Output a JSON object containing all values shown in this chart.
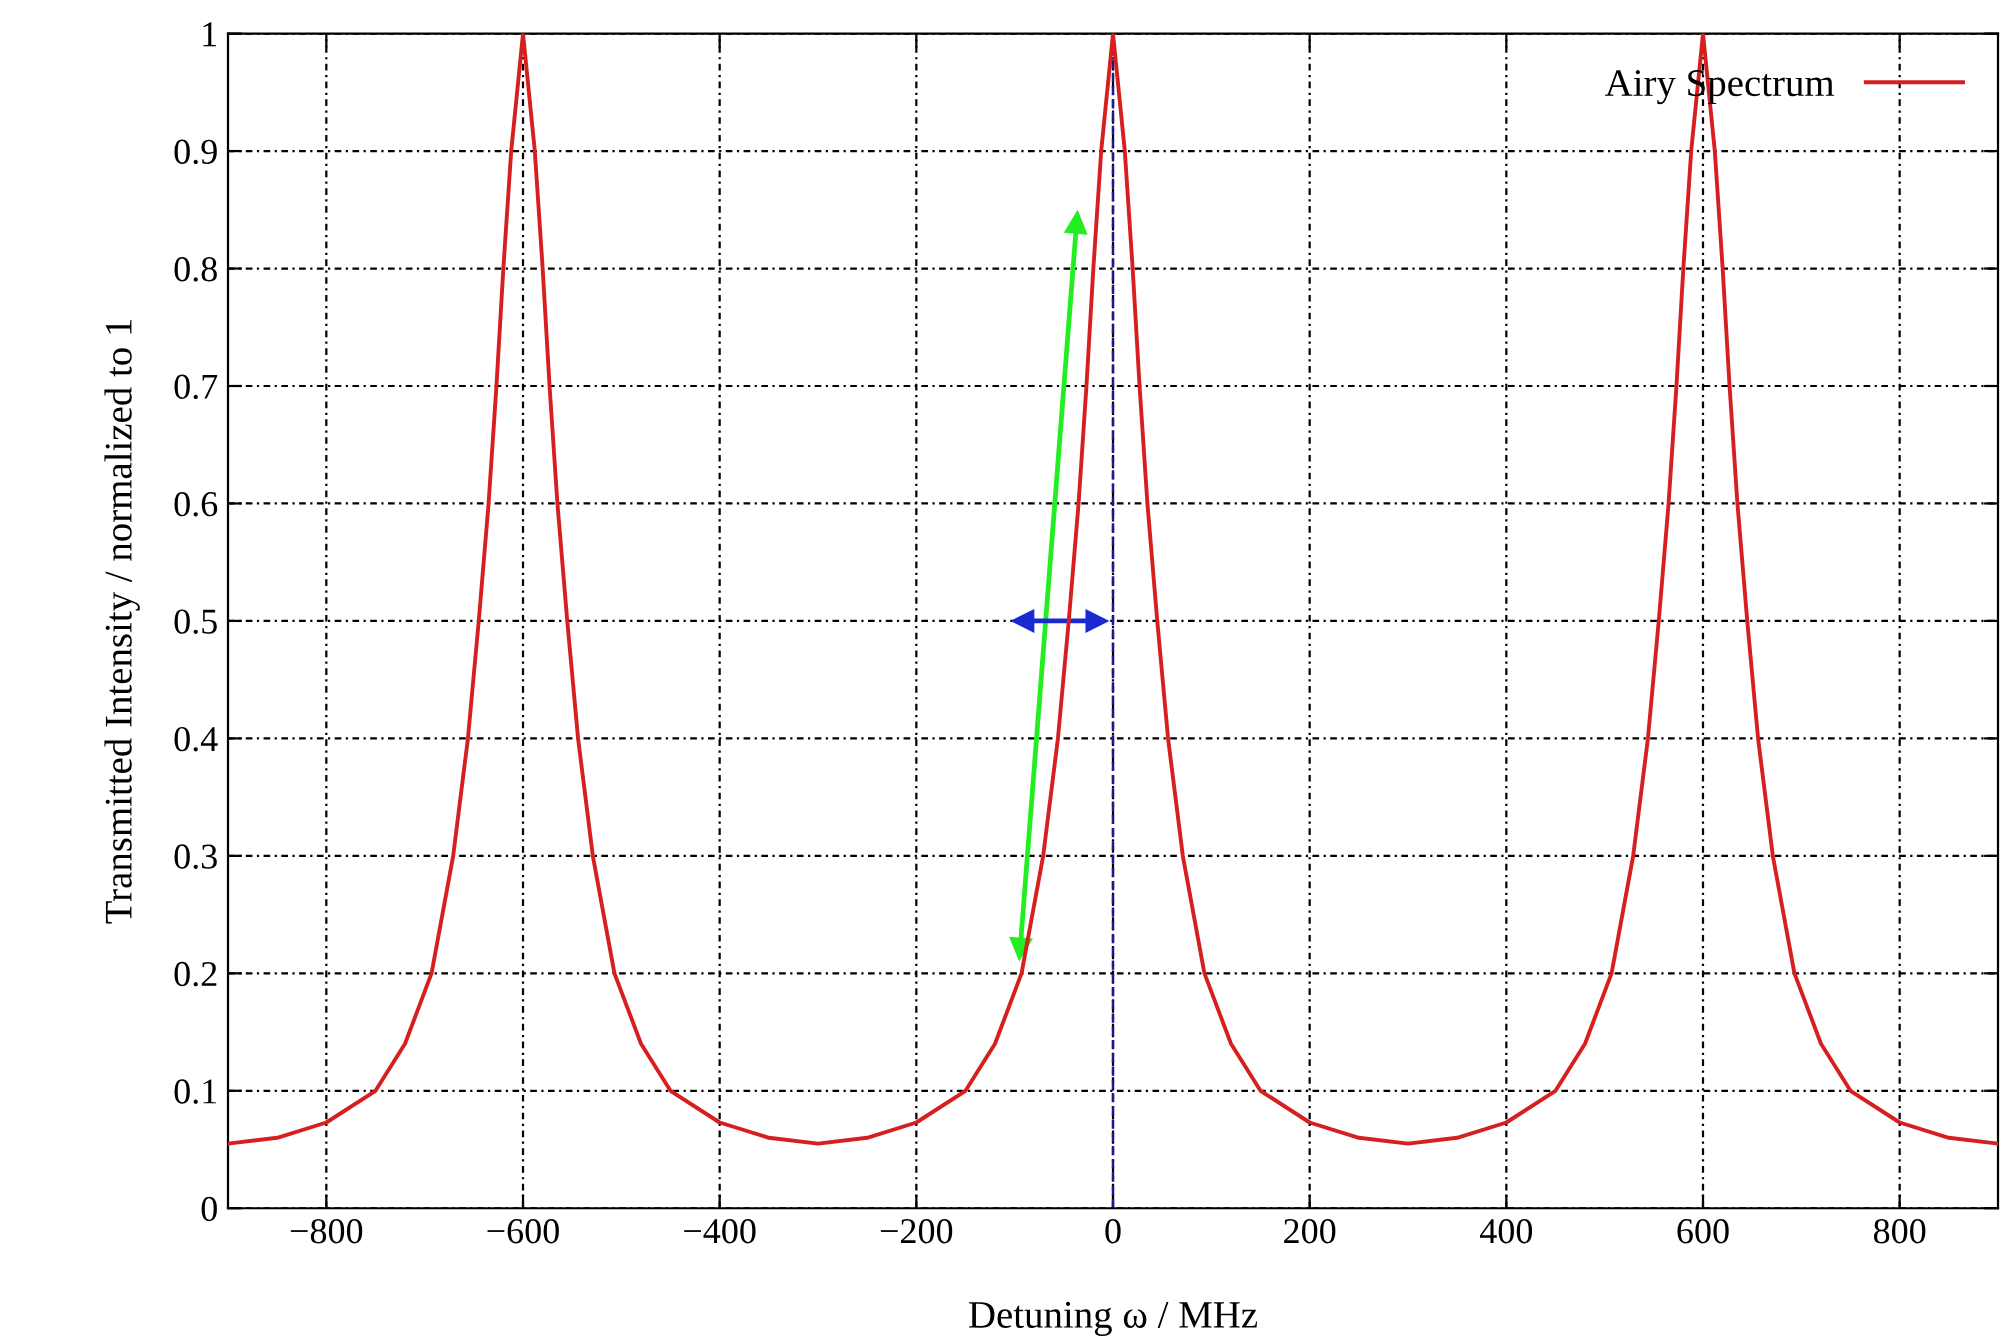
{
  "chart_data": {
    "type": "line",
    "xlabel": "Detuning ω / MHz",
    "ylabel": "Transmitted Intensity / normalized to 1",
    "xlim": [
      -900,
      900
    ],
    "ylim": [
      0,
      1
    ],
    "xticks": [
      {
        "value": -800,
        "label": "−800"
      },
      {
        "value": -600,
        "label": "−600"
      },
      {
        "value": -400,
        "label": "−400"
      },
      {
        "value": -200,
        "label": "−200"
      },
      0,
      200,
      400,
      600,
      800
    ],
    "yticks": [
      0,
      0.1,
      0.2,
      0.3,
      0.4,
      0.5,
      0.6,
      0.7,
      0.8,
      0.9,
      1
    ],
    "grid": true,
    "legend": "top right",
    "marker": "none",
    "line_style": "solid",
    "ref_lines": [
      {
        "axis": "x",
        "value": 0,
        "color": "#1a1a8c",
        "line_style": "dashed"
      }
    ],
    "series": [
      {
        "name": "Airy Spectrum",
        "color": "#d62020",
        "x": [
          -900,
          -850,
          -800,
          -750,
          -720,
          -693,
          -671,
          -656,
          -645,
          -635,
          -627,
          -620,
          -612,
          -600,
          -588,
          -580,
          -573,
          -565,
          -555,
          -544,
          -529,
          -507,
          -480,
          -450,
          -400,
          -350,
          -300,
          -250,
          -200,
          -150,
          -120,
          -93,
          -71,
          -56,
          -45,
          -35,
          -27,
          -20,
          -12,
          0,
          12,
          20,
          27,
          35,
          45,
          56,
          71,
          93,
          120,
          150,
          200,
          250,
          300,
          350,
          400,
          450,
          480,
          507,
          529,
          544,
          555,
          565,
          573,
          580,
          588,
          600,
          612,
          620,
          627,
          635,
          645,
          656,
          671,
          693,
          720,
          750,
          800,
          850,
          900
        ],
        "values": [
          0.055,
          0.06,
          0.073,
          0.1,
          0.14,
          0.2,
          0.3,
          0.4,
          0.5,
          0.6,
          0.7,
          0.8,
          0.9,
          1,
          0.9,
          0.8,
          0.7,
          0.6,
          0.5,
          0.4,
          0.3,
          0.2,
          0.14,
          0.1,
          0.073,
          0.06,
          0.055,
          0.06,
          0.073,
          0.1,
          0.14,
          0.2,
          0.3,
          0.4,
          0.5,
          0.6,
          0.7,
          0.8,
          0.9,
          1,
          0.9,
          0.8,
          0.7,
          0.6,
          0.5,
          0.4,
          0.3,
          0.2,
          0.14,
          0.1,
          0.073,
          0.06,
          0.055,
          0.06,
          0.073,
          0.1,
          0.14,
          0.2,
          0.3,
          0.4,
          0.5,
          0.6,
          0.7,
          0.8,
          0.9,
          1,
          0.9,
          0.8,
          0.7,
          0.6,
          0.5,
          0.4,
          0.3,
          0.2,
          0.14,
          0.1,
          0.073,
          0.06,
          0.055
        ]
      }
    ]
  }
}
